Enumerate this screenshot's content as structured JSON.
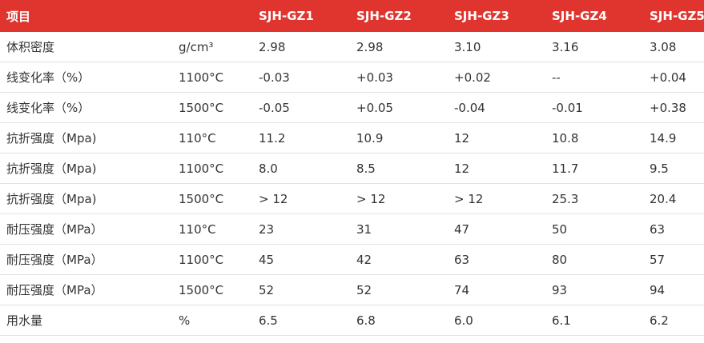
{
  "table": {
    "header": {
      "title": "项目",
      "columns": [
        "SJH-GZ1",
        "SJH-GZ2",
        "SJH-GZ3",
        "SJH-GZ4",
        "SJH-GZ5"
      ]
    },
    "rows": [
      [
        "体积密度",
        "g/cm³",
        "2.98",
        "2.98",
        "3.10",
        "3.16",
        "3.08"
      ],
      [
        "线变化率（%）",
        "1100°C",
        "-0.03",
        "+0.03",
        "+0.02",
        "--",
        "+0.04"
      ],
      [
        "线变化率（%）",
        "1500°C",
        "-0.05",
        "+0.05",
        "-0.04",
        "-0.01",
        "+0.38"
      ],
      [
        "抗折强度（Mpa)",
        "110°C",
        "11.2",
        "10.9",
        "12",
        "10.8",
        "14.9"
      ],
      [
        "抗折强度（Mpa)",
        "1100°C",
        "8.0",
        "8.5",
        "12",
        "11.7",
        "9.5"
      ],
      [
        "抗折强度（Mpa)",
        "1500°C",
        "> 12",
        "> 12",
        "> 12",
        "25.3",
        "20.4"
      ],
      [
        "耐压强度（MPa）",
        "110°C",
        "23",
        "31",
        "47",
        "50",
        "63"
      ],
      [
        "耐压强度（MPa）",
        "1100°C",
        "45",
        "42",
        "63",
        "80",
        "57"
      ],
      [
        "耐压强度（MPa）",
        "1500°C",
        "52",
        "52",
        "74",
        "93",
        "94"
      ],
      [
        "用水量",
        "%",
        "6.5",
        "6.8",
        "6.0",
        "6.1",
        "6.2"
      ]
    ]
  }
}
